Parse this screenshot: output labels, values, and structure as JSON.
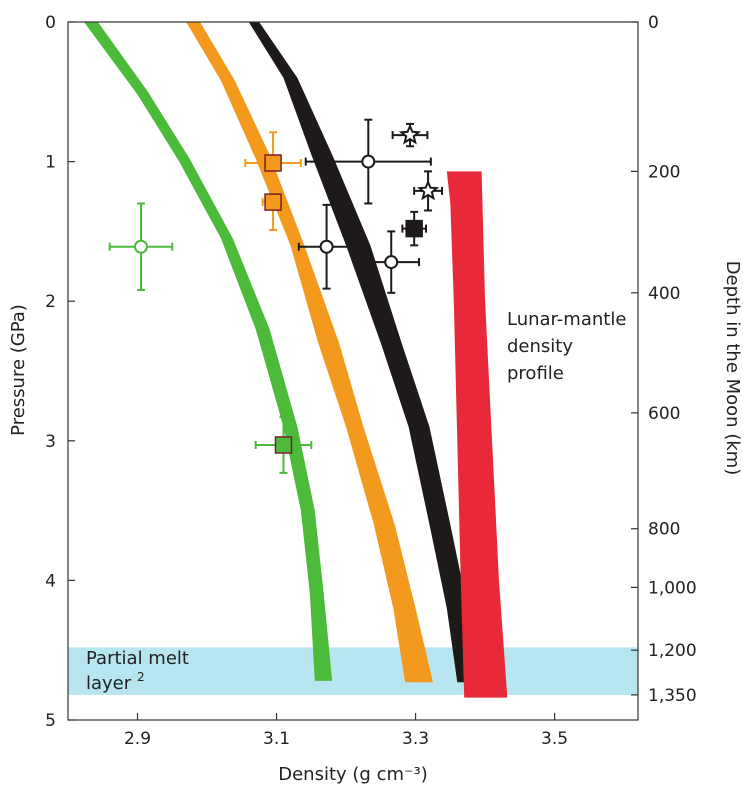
{
  "chart_data": {
    "type": "scatter",
    "xlabel": "Density (g cm⁻³)",
    "ylabel": "Pressure (GPa)",
    "y2label": "Depth in the Moon (km)",
    "xlim": [
      2.8,
      3.62
    ],
    "ylim": [
      0,
      5
    ],
    "x_ticks": [
      2.9,
      3.1,
      3.3,
      3.5
    ],
    "x_tick_labels": [
      "2.9",
      "3.1",
      "3.3",
      "3.5"
    ],
    "y_ticks": [
      0,
      1,
      2,
      3,
      4,
      5
    ],
    "y_tick_labels": [
      "0",
      "1",
      "2",
      "3",
      "4",
      "5"
    ],
    "depth_ticks": [
      {
        "pressure": 0,
        "label": "0"
      },
      {
        "pressure": 1.07,
        "label": "200"
      },
      {
        "pressure": 1.94,
        "label": "400"
      },
      {
        "pressure": 2.8,
        "label": "600"
      },
      {
        "pressure": 3.63,
        "label": "800"
      },
      {
        "pressure": 4.05,
        "label": "1,000"
      },
      {
        "pressure": 4.5,
        "label": "1,200"
      },
      {
        "pressure": 4.82,
        "label": "1,350"
      }
    ],
    "bands": [
      {
        "color": "#4cbb3a",
        "left": [
          [
            2.823,
            0
          ],
          [
            2.9,
            0.52
          ],
          [
            2.96,
            1.0
          ],
          [
            3.02,
            1.55
          ],
          [
            3.07,
            2.2
          ],
          [
            3.11,
            2.9
          ],
          [
            3.135,
            3.5
          ],
          [
            3.148,
            4.1
          ],
          [
            3.155,
            4.72
          ]
        ],
        "right": [
          [
            2.843,
            0
          ],
          [
            2.915,
            0.5
          ],
          [
            2.975,
            0.98
          ],
          [
            3.037,
            1.55
          ],
          [
            3.09,
            2.2
          ],
          [
            3.13,
            2.9
          ],
          [
            3.155,
            3.5
          ],
          [
            3.168,
            4.1
          ],
          [
            3.18,
            4.72
          ]
        ]
      },
      {
        "color": "#f39a1e",
        "left": [
          [
            2.97,
            0
          ],
          [
            3.02,
            0.42
          ],
          [
            3.07,
            0.98
          ],
          [
            3.12,
            1.6
          ],
          [
            3.16,
            2.3
          ],
          [
            3.2,
            2.9
          ],
          [
            3.24,
            3.6
          ],
          [
            3.268,
            4.2
          ],
          [
            3.285,
            4.73
          ]
        ],
        "right": [
          [
            2.99,
            0
          ],
          [
            3.04,
            0.42
          ],
          [
            3.09,
            0.95
          ],
          [
            3.14,
            1.6
          ],
          [
            3.19,
            2.3
          ],
          [
            3.225,
            2.9
          ],
          [
            3.27,
            3.6
          ],
          [
            3.3,
            4.2
          ],
          [
            3.325,
            4.73
          ]
        ]
      },
      {
        "color": "#1e1a1a",
        "left": [
          [
            3.06,
            0
          ],
          [
            3.11,
            0.4
          ],
          [
            3.15,
            0.95
          ],
          [
            3.2,
            1.6
          ],
          [
            3.25,
            2.3
          ],
          [
            3.29,
            2.9
          ],
          [
            3.32,
            3.6
          ],
          [
            3.345,
            4.2
          ],
          [
            3.36,
            4.73
          ]
        ],
        "right": [
          [
            3.075,
            0
          ],
          [
            3.13,
            0.4
          ],
          [
            3.18,
            0.95
          ],
          [
            3.235,
            1.6
          ],
          [
            3.28,
            2.3
          ],
          [
            3.32,
            2.9
          ],
          [
            3.35,
            3.6
          ],
          [
            3.375,
            4.2
          ],
          [
            3.395,
            4.73
          ]
        ]
      }
    ],
    "lunar_profile": {
      "color": "#e8293a",
      "polygon": [
        [
          3.345,
          1.07
        ],
        [
          3.395,
          1.07
        ],
        [
          3.4,
          2.0
        ],
        [
          3.41,
          3.0
        ],
        [
          3.42,
          4.0
        ],
        [
          3.432,
          4.84
        ],
        [
          3.37,
          4.84
        ],
        [
          3.365,
          4.0
        ],
        [
          3.36,
          3.0
        ],
        [
          3.355,
          2.0
        ],
        [
          3.35,
          1.3
        ]
      ]
    },
    "partial_melt_layer": {
      "color": "#b7e5f0",
      "p_top": 4.48,
      "p_bottom": 4.82
    },
    "series": [
      {
        "color": "#4cbb3a",
        "points": [
          {
            "marker": "circle",
            "x": 2.905,
            "y": 1.61,
            "xerr": 0.045,
            "yerr": 0.31,
            "fill": "#ffffff"
          },
          {
            "marker": "square",
            "x": 3.11,
            "y": 3.03,
            "xerr": 0.04,
            "yerr": 0.2,
            "fill": "#4cbb3a"
          }
        ]
      },
      {
        "color": "#f39a1e",
        "points": [
          {
            "marker": "square",
            "x": 3.095,
            "y": 1.01,
            "xerr": 0.04,
            "yerr": 0.22,
            "fill": "#f39a1e"
          },
          {
            "marker": "square",
            "x": 3.095,
            "y": 1.29,
            "xerr": 0.015,
            "yerr": 0.2,
            "fill": "#f39a1e"
          }
        ]
      },
      {
        "color": "#1e1a1a",
        "points": [
          {
            "marker": "circle",
            "x": 3.232,
            "y": 1.0,
            "xerr": 0.09,
            "yerr": 0.3,
            "fill": "#ffffff"
          },
          {
            "marker": "circle",
            "x": 3.172,
            "y": 1.61,
            "xerr": 0.04,
            "yerr": 0.3,
            "fill": "#ffffff"
          },
          {
            "marker": "circle",
            "x": 3.265,
            "y": 1.72,
            "xerr": 0.04,
            "yerr": 0.22,
            "fill": "#ffffff"
          },
          {
            "marker": "square",
            "x": 3.298,
            "y": 1.48,
            "xerr": 0.017,
            "yerr": 0.12,
            "fill": "#1e1a1a"
          },
          {
            "marker": "star",
            "x": 3.292,
            "y": 0.81,
            "xerr": 0.025,
            "yerr": 0.08,
            "fill": "#ffffff"
          },
          {
            "marker": "star",
            "x": 3.318,
            "y": 1.21,
            "xerr": 0.02,
            "yerr": 0.14,
            "fill": "#ffffff"
          }
        ]
      }
    ]
  },
  "annotations": {
    "lunar_profile_label": [
      "Lunar-mantle",
      "density",
      "profile"
    ],
    "partial_melt_label": [
      "Partial melt",
      "layer"
    ],
    "partial_melt_ref": "2"
  }
}
